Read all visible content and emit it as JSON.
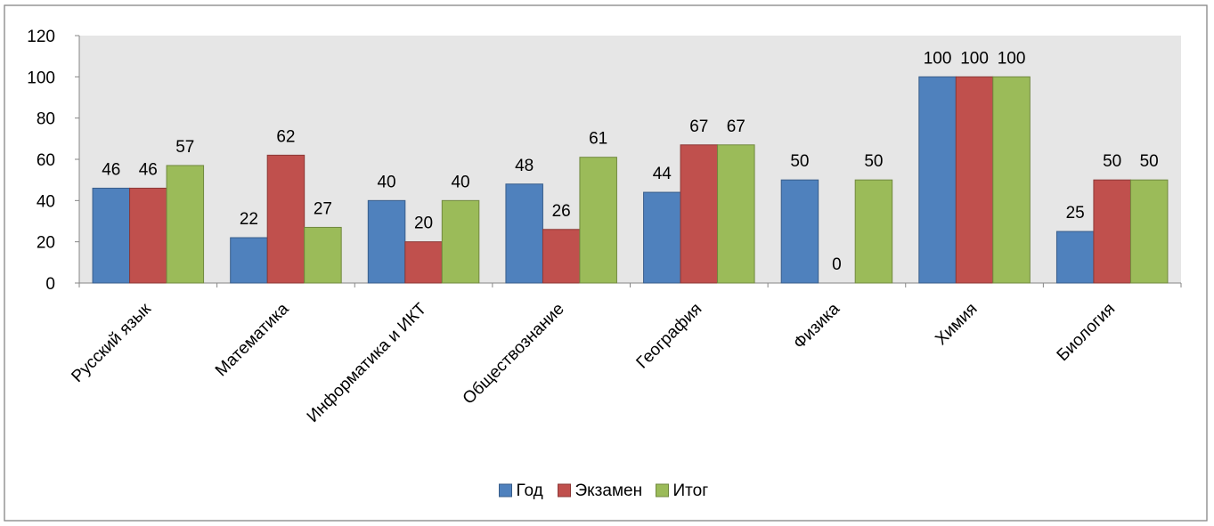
{
  "chart_data": {
    "type": "bar",
    "categories": [
      "Русский язык",
      "Математика",
      "Информатика и ИКТ",
      "Обществознание",
      "География",
      "Физика",
      "Химия",
      "Биология"
    ],
    "series": [
      {
        "name": "Год",
        "values": [
          46,
          22,
          40,
          48,
          44,
          50,
          100,
          25
        ],
        "color": "#4f81bd",
        "border": "#385d8a"
      },
      {
        "name": "Экзамен",
        "values": [
          46,
          62,
          20,
          26,
          67,
          0,
          100,
          50
        ],
        "color": "#c0504d",
        "border": "#8c3836"
      },
      {
        "name": "Итог",
        "values": [
          57,
          27,
          40,
          61,
          67,
          50,
          100,
          50
        ],
        "color": "#9bbb59",
        "border": "#71893f"
      }
    ],
    "ylim": [
      0,
      120
    ],
    "yticks": [
      0,
      20,
      40,
      60,
      80,
      100,
      120
    ],
    "title": "",
    "xlabel": "",
    "ylabel": "",
    "legend_position": "bottom",
    "grid": false
  }
}
